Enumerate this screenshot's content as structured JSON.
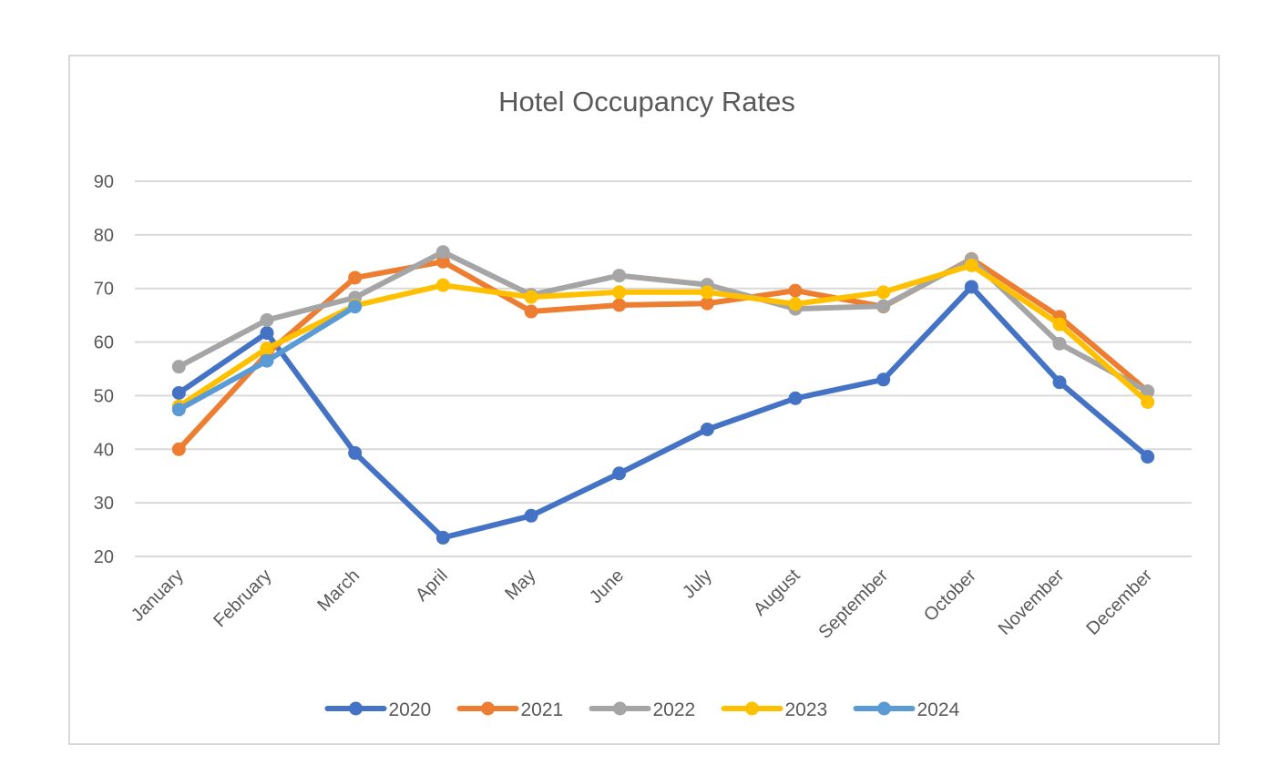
{
  "chart_data": {
    "type": "line",
    "title": "Hotel Occupancy Rates",
    "xlabel": "",
    "ylabel": "",
    "categories": [
      "January",
      "February",
      "March",
      "April",
      "May",
      "June",
      "July",
      "August",
      "September",
      "October",
      "November",
      "December"
    ],
    "ylim": [
      20,
      90
    ],
    "yticks": [
      20,
      30,
      40,
      50,
      60,
      70,
      80,
      90
    ],
    "grid": true,
    "legend_position": "bottom",
    "series": [
      {
        "name": "2020",
        "color": "#4472C4",
        "values": [
          50.5,
          61.7,
          39.3,
          23.5,
          27.6,
          35.5,
          43.7,
          49.5,
          53.0,
          70.3,
          52.5,
          38.6
        ]
      },
      {
        "name": "2021",
        "color": "#ED7D31",
        "values": [
          40.0,
          57.8,
          72.0,
          75.0,
          65.7,
          66.9,
          67.2,
          69.6,
          66.6,
          75.5,
          64.7,
          50.8
        ]
      },
      {
        "name": "2022",
        "color": "#A5A5A5",
        "values": [
          55.4,
          64.1,
          68.3,
          76.8,
          68.8,
          72.4,
          70.7,
          66.2,
          66.7,
          75.4,
          59.7,
          50.8
        ]
      },
      {
        "name": "2023",
        "color": "#FFC000",
        "values": [
          48.0,
          58.8,
          66.8,
          70.6,
          68.4,
          69.3,
          69.3,
          67.1,
          69.3,
          74.3,
          63.3,
          48.8
        ]
      },
      {
        "name": "2024",
        "color": "#5B9BD5",
        "values": [
          47.4,
          56.5,
          66.6,
          null,
          null,
          null,
          null,
          null,
          null,
          null,
          null,
          null
        ]
      }
    ]
  }
}
